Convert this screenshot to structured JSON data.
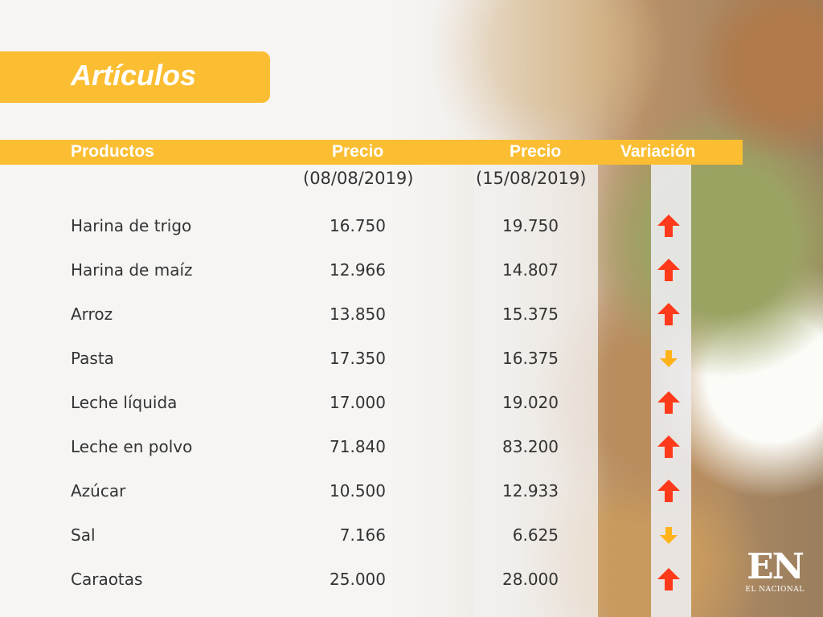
{
  "title": "Artículos",
  "colors": {
    "accent": "#fbbe33",
    "up_arrow": "#ff3a1a",
    "down_arrow": "#ffb21a",
    "text": "#333333"
  },
  "table": {
    "headers": {
      "products": "Productos",
      "price1": "Precio",
      "price1_date": "(08/08/2019)",
      "price2": "Precio",
      "price2_date": "(15/08/2019)",
      "variation": "Variación"
    },
    "rows": [
      {
        "name": "Harina de trigo",
        "price1": "16.750",
        "price2": "19.750",
        "variation": "up"
      },
      {
        "name": "Harina de maíz",
        "price1": "12.966",
        "price2": "14.807",
        "variation": "up"
      },
      {
        "name": "Arroz",
        "price1": "13.850",
        "price2": "15.375",
        "variation": "up"
      },
      {
        "name": "Pasta",
        "price1": "17.350",
        "price2": "16.375",
        "variation": "down"
      },
      {
        "name": "Leche líquida",
        "price1": "17.000",
        "price2": "19.020",
        "variation": "up"
      },
      {
        "name": "Leche en polvo",
        "price1": "71.840",
        "price2": "83.200",
        "variation": "up"
      },
      {
        "name": "Azúcar",
        "price1": "10.500",
        "price2": "12.933",
        "variation": "up"
      },
      {
        "name": "Sal",
        "price1": "7.166",
        "price2": "6.625",
        "variation": "down"
      },
      {
        "name": "Caraotas",
        "price1": "25.000",
        "price2": "28.000",
        "variation": "up"
      }
    ]
  },
  "logo": {
    "main": "EN",
    "sub": "EL NACIONAL"
  }
}
